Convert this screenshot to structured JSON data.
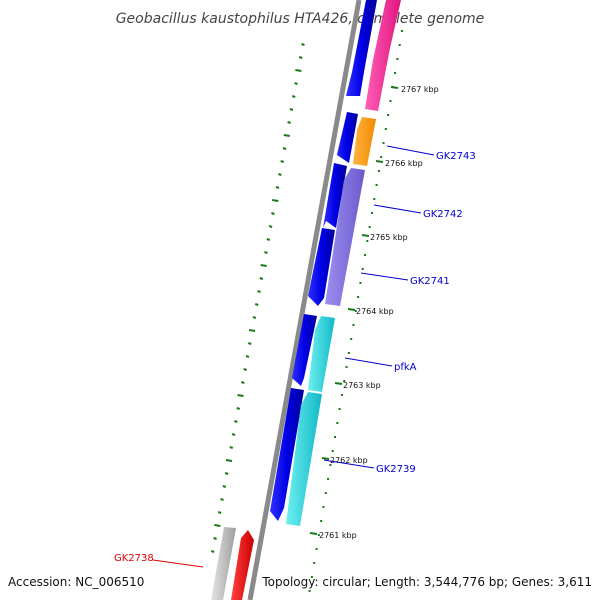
{
  "title": "Geobacillus kaustophilus HTA426, complete genome",
  "footer": {
    "accession": "Accession: NC_006510",
    "summary": "Topology: circular; Length: 3,544,776 bp; Genes: 3,611"
  },
  "colors": {
    "backbone": "#888888",
    "forward_cds": "#0000ee",
    "label_blue": "#0000cc",
    "label_red": "#dd0000",
    "gc_ticks": "#1a7a1a"
  },
  "scale_ticks": [
    {
      "label": "2767 kbp",
      "kbp": 2767
    },
    {
      "label": "2766 kbp",
      "kbp": 2766
    },
    {
      "label": "2765 kbp",
      "kbp": 2765
    },
    {
      "label": "2764 kbp",
      "kbp": 2764
    },
    {
      "label": "2763 kbp",
      "kbp": 2763
    },
    {
      "label": "2762 kbp",
      "kbp": 2762
    },
    {
      "label": "2761 kbp",
      "kbp": 2761
    }
  ],
  "gene_labels": [
    {
      "name": "GK2743",
      "color": "#0000cc"
    },
    {
      "name": "GK2742",
      "color": "#0000cc"
    },
    {
      "name": "GK2741",
      "color": "#0000cc"
    },
    {
      "name": "pfkA",
      "color": "#0000cc"
    },
    {
      "name": "GK2739",
      "color": "#0000cc"
    },
    {
      "name": "GK2738",
      "color": "#dd0000"
    }
  ]
}
